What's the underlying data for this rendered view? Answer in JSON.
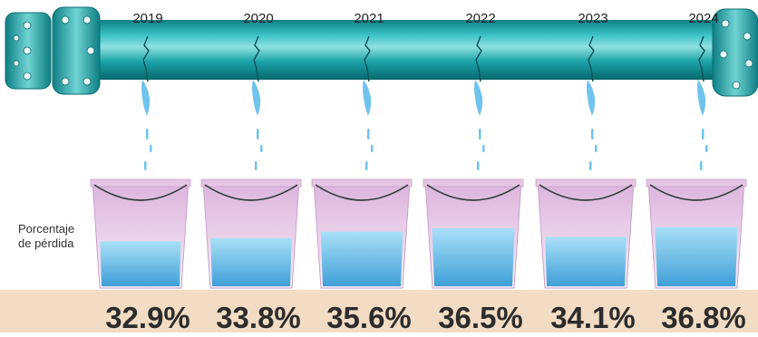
{
  "chart_data": {
    "type": "bar",
    "categories": [
      "2019",
      "2020",
      "2021",
      "2022",
      "2023",
      "2024"
    ],
    "series": [
      {
        "values": [
          32.9,
          33.8,
          35.6,
          36.5,
          34.1,
          36.8
        ]
      }
    ],
    "value_labels": [
      "32.9%",
      "33.8%",
      "35.6%",
      "36.5%",
      "34.1%",
      "36.8%"
    ],
    "ylabel_lines": [
      "Porcentaje",
      "de pérdida"
    ],
    "unit": "%"
  },
  "colors": {
    "pipe": "#1aa3a7",
    "water": "#6fc3ec",
    "bucket": "#e6c4e6",
    "band": "#f2dcc3"
  }
}
